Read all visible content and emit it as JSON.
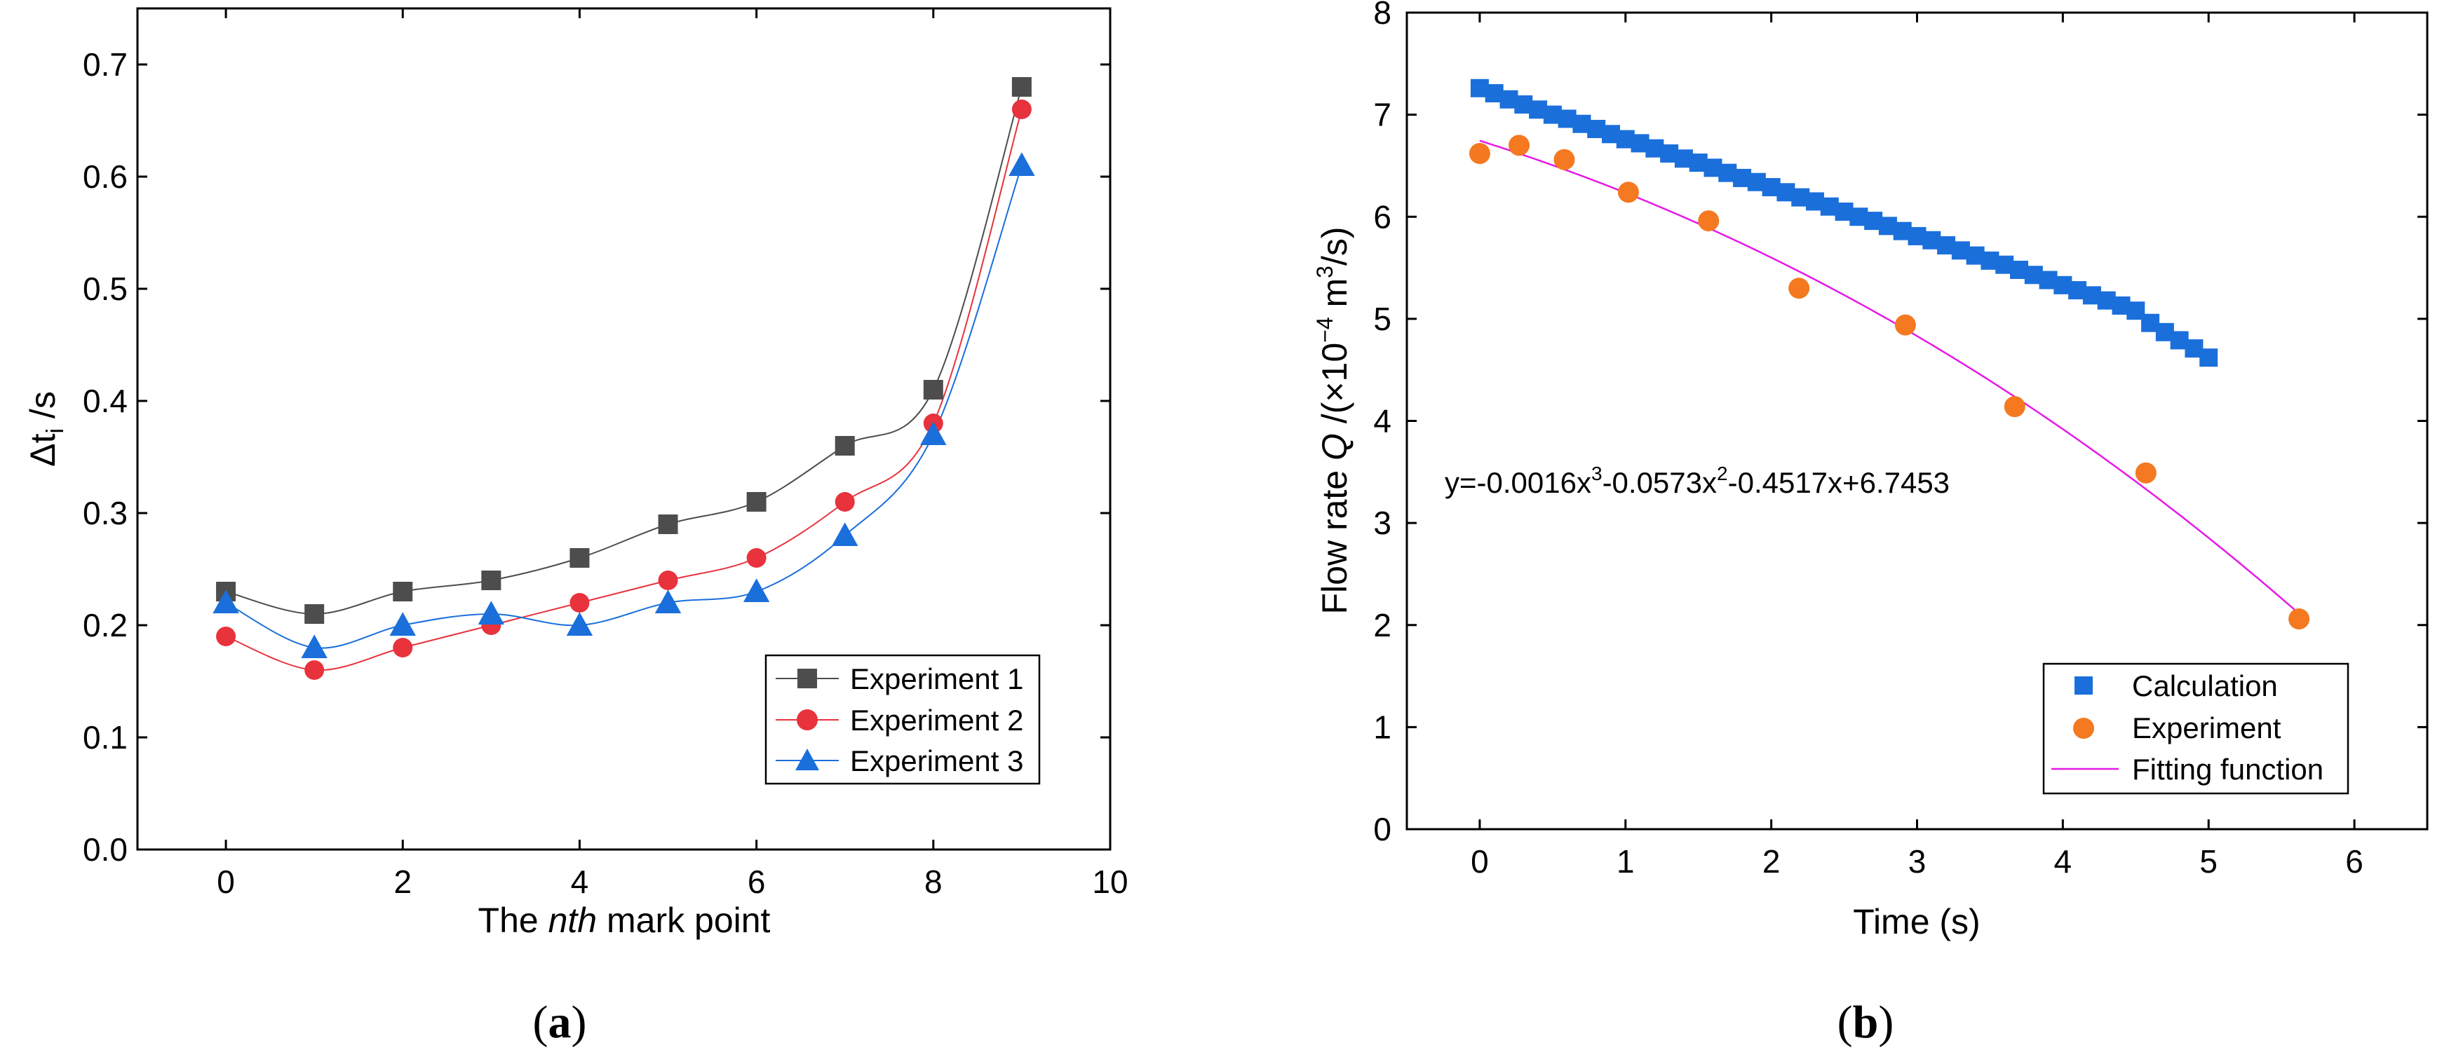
{
  "chart_data": [
    {
      "id": "a",
      "type": "line",
      "panel_label": "a",
      "title": "",
      "xlabel_pre": "The ",
      "xlabel_italic": "nth",
      "xlabel_post": " mark point",
      "ylabel_main": "Δt",
      "ylabel_sub": "i",
      "ylabel_post": " /s",
      "xlim": [
        -1,
        10
      ],
      "ylim": [
        0.0,
        0.75
      ],
      "xticks": [
        0,
        2,
        4,
        6,
        8,
        10
      ],
      "yticks": [
        0.0,
        0.1,
        0.2,
        0.3,
        0.4,
        0.5,
        0.6,
        0.7
      ],
      "ytick_labels": [
        "0.0",
        "0.1",
        "0.2",
        "0.3",
        "0.4",
        "0.5",
        "0.6",
        "0.7"
      ],
      "legend_position": "lower-right",
      "x": [
        0,
        1,
        2,
        3,
        4,
        5,
        6,
        7,
        8,
        9
      ],
      "series": [
        {
          "name": "Experiment 1",
          "marker": "square",
          "color": "#4d4d4d",
          "values": [
            0.23,
            0.21,
            0.23,
            0.24,
            0.26,
            0.29,
            0.31,
            0.36,
            0.41,
            0.68
          ]
        },
        {
          "name": "Experiment 2",
          "marker": "circle",
          "color": "#e8323c",
          "values": [
            0.19,
            0.16,
            0.18,
            0.2,
            0.22,
            0.24,
            0.26,
            0.31,
            0.38,
            0.66
          ]
        },
        {
          "name": "Experiment 3",
          "marker": "triangle",
          "color": "#1a6fdb",
          "values": [
            0.22,
            0.18,
            0.2,
            0.21,
            0.2,
            0.22,
            0.23,
            0.28,
            0.37,
            0.61
          ]
        }
      ]
    },
    {
      "id": "b",
      "type": "scatter",
      "panel_label": "b",
      "title": "",
      "xlabel": "Time (s)",
      "ylabel_pre": "Flow rate ",
      "ylabel_italic": "Q",
      "ylabel_mid1": " /(×10",
      "ylabel_sup1": "−4",
      "ylabel_mid2": " m",
      "ylabel_sup2": "3",
      "ylabel_post": "/s)",
      "xlim": [
        -0.5,
        6.5
      ],
      "ylim": [
        0,
        8
      ],
      "xticks": [
        0,
        1,
        2,
        3,
        4,
        5,
        6
      ],
      "yticks": [
        0,
        1,
        2,
        3,
        4,
        5,
        6,
        7,
        8
      ],
      "legend_position": "lower-right",
      "equation": {
        "p1": "y=-0.0016x",
        "s1": "3",
        "p2": "-0.0573x",
        "s2": "2",
        "p3": "-0.4517x+6.7453"
      },
      "calculation": {
        "name": "Calculation",
        "marker": "square",
        "color": "#1a6fdb",
        "x": [
          0.0,
          0.1,
          0.2,
          0.3,
          0.4,
          0.5,
          0.6,
          0.7,
          0.8,
          0.9,
          1.0,
          1.1,
          1.2,
          1.3,
          1.4,
          1.5,
          1.6,
          1.7,
          1.8,
          1.9,
          2.0,
          2.1,
          2.2,
          2.3,
          2.4,
          2.5,
          2.6,
          2.7,
          2.8,
          2.9,
          3.0,
          3.1,
          3.2,
          3.3,
          3.4,
          3.5,
          3.6,
          3.7,
          3.8,
          3.9,
          4.0,
          4.1,
          4.2,
          4.3,
          4.4,
          4.5,
          4.6,
          4.7,
          4.8,
          4.9,
          5.0
        ],
        "y": [
          7.26,
          7.21,
          7.15,
          7.1,
          7.05,
          7.0,
          6.96,
          6.91,
          6.86,
          6.81,
          6.76,
          6.72,
          6.67,
          6.62,
          6.57,
          6.53,
          6.48,
          6.43,
          6.38,
          6.34,
          6.29,
          6.24,
          6.19,
          6.15,
          6.1,
          6.05,
          6.0,
          5.96,
          5.91,
          5.86,
          5.81,
          5.77,
          5.72,
          5.67,
          5.62,
          5.57,
          5.53,
          5.48,
          5.43,
          5.38,
          5.33,
          5.28,
          5.23,
          5.18,
          5.13,
          5.08,
          4.96,
          4.87,
          4.79,
          4.71,
          4.62
        ]
      },
      "experiment": {
        "name": "Experiment",
        "marker": "circle",
        "color": "#f47920",
        "x": [
          0.0,
          0.27,
          0.58,
          1.02,
          1.57,
          2.19,
          2.92,
          3.67,
          4.57,
          5.62
        ],
        "y": [
          6.62,
          6.7,
          6.56,
          6.24,
          5.96,
          5.3,
          4.94,
          4.14,
          3.49,
          2.06
        ]
      },
      "fit": {
        "name": "Fitting function",
        "color": "#e619e6",
        "coefficients": [
          -0.0016,
          -0.0573,
          -0.4517,
          6.7453
        ],
        "x_range": [
          0,
          5.62
        ]
      }
    }
  ]
}
